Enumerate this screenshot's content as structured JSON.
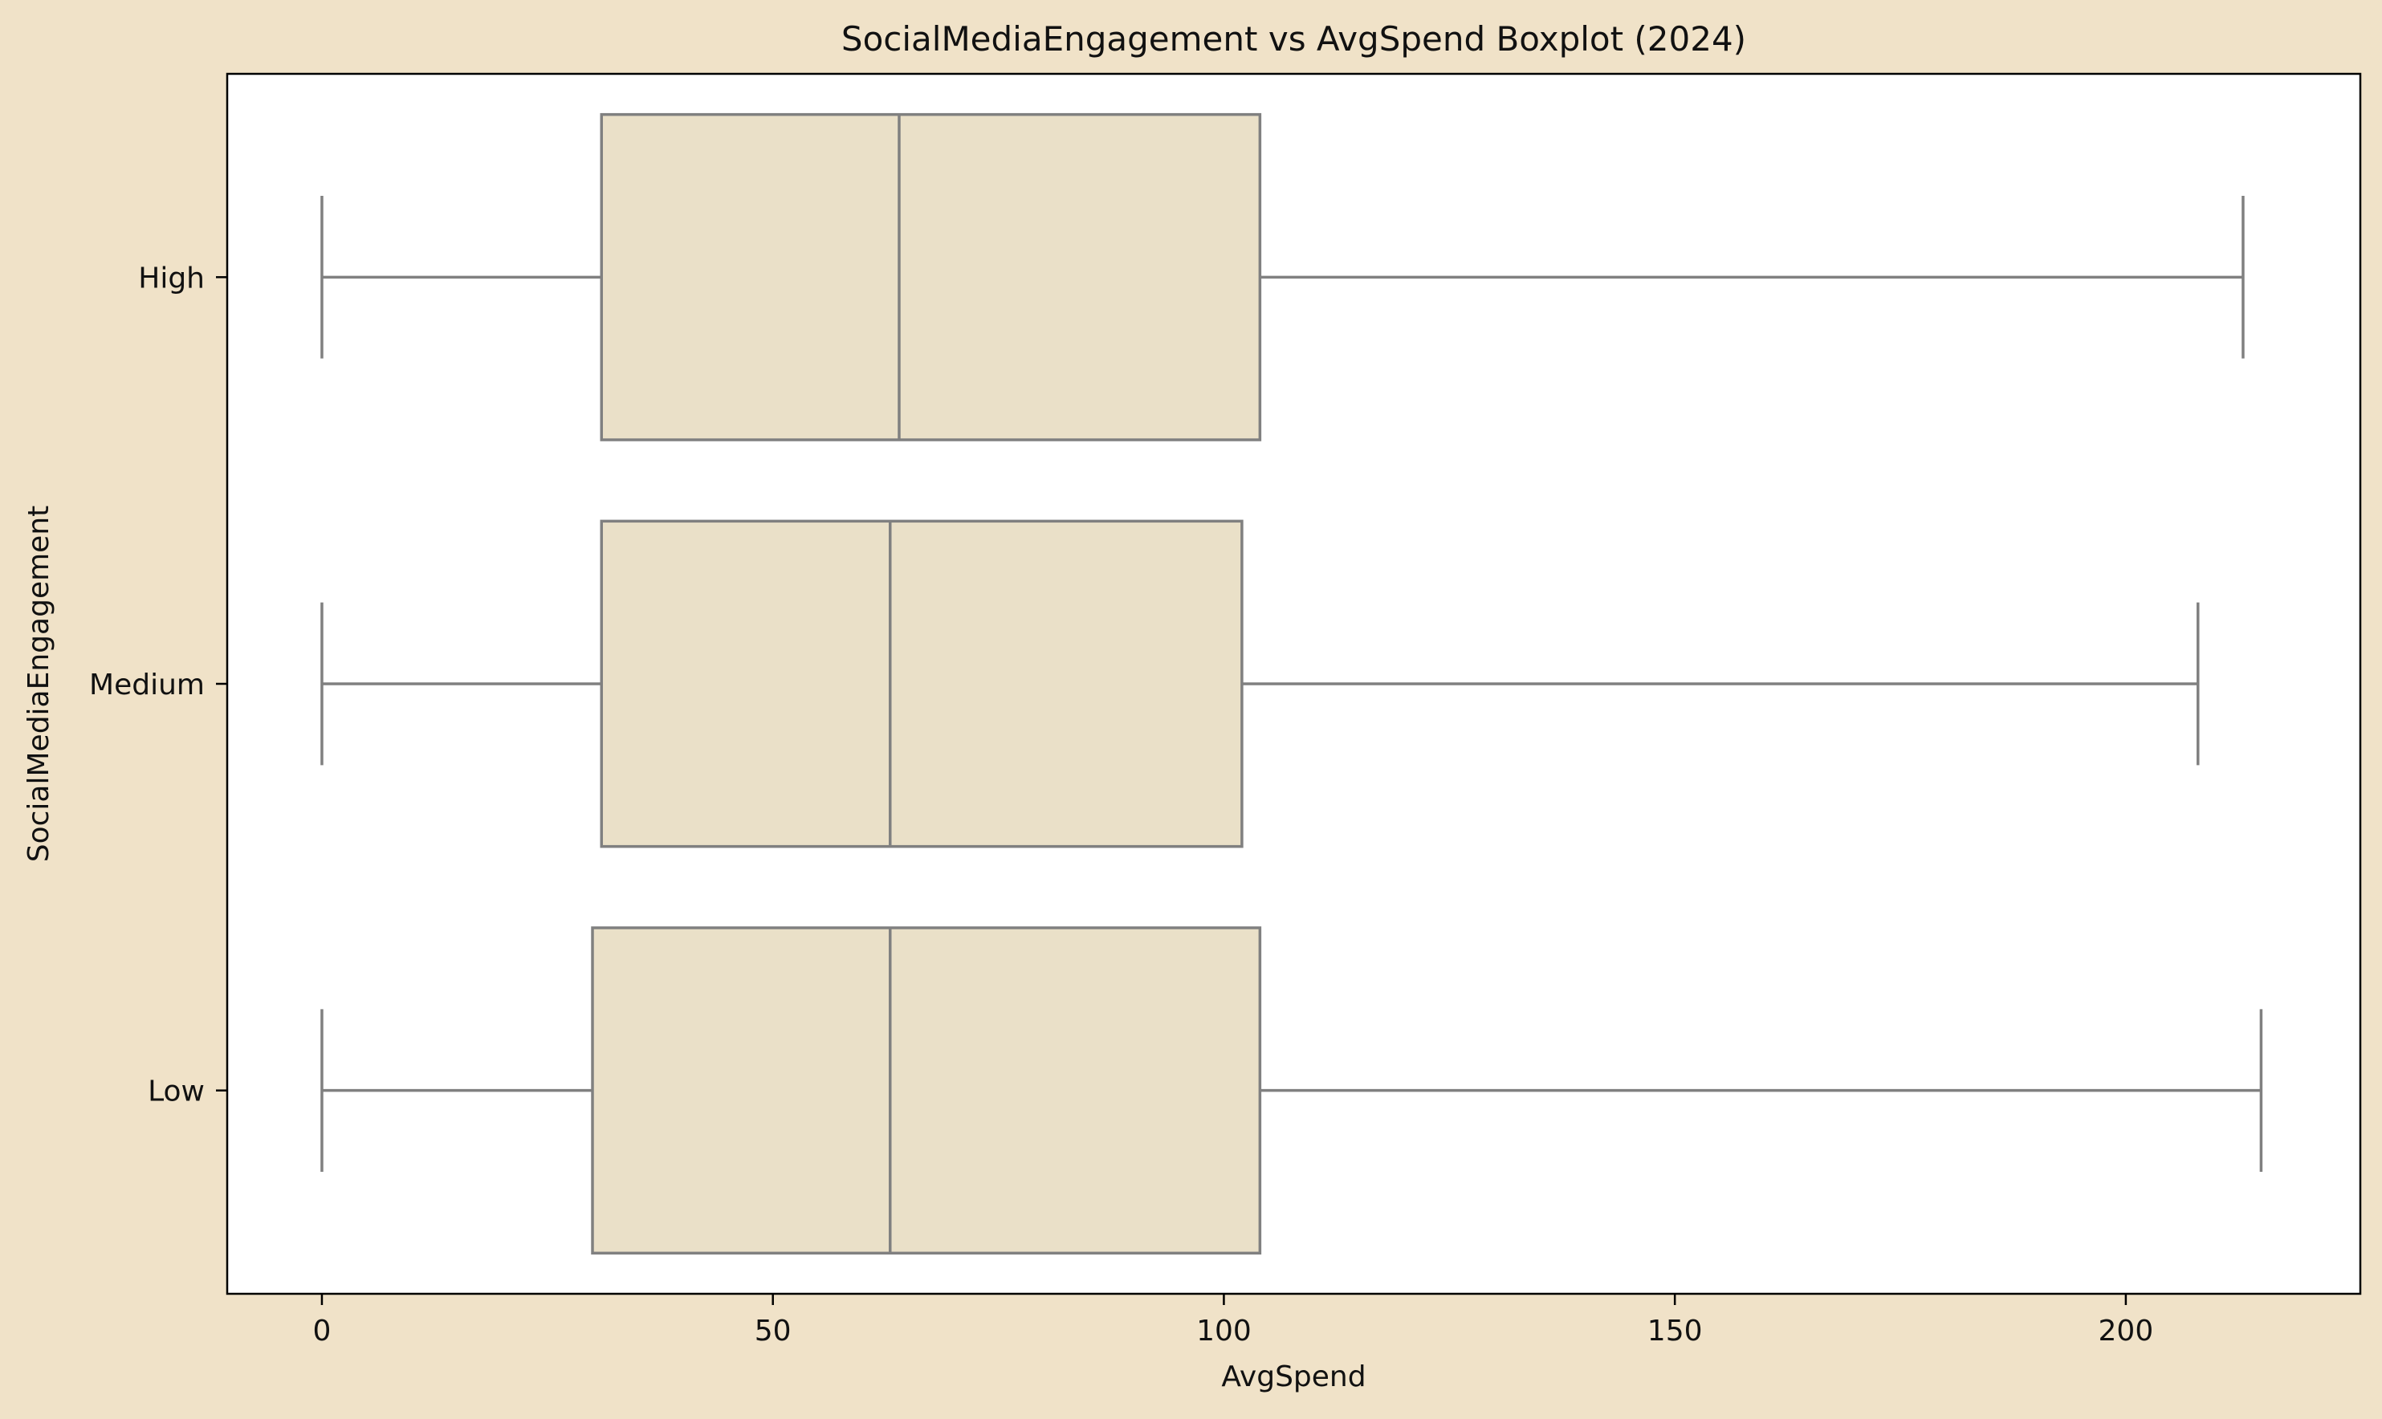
{
  "chart_data": {
    "type": "boxplot",
    "orientation": "horizontal",
    "title": "SocialMediaEngagement vs AvgSpend Boxplot (2024)",
    "xlabel": "AvgSpend",
    "ylabel": "SocialMediaEngagement",
    "xlim": [
      -10.5,
      226
    ],
    "xticks": [
      0,
      50,
      100,
      150,
      200
    ],
    "xtick_labels": [
      "0",
      "50",
      "100",
      "150",
      "200"
    ],
    "grid": false,
    "categories": [
      "High",
      "Medium",
      "Low"
    ],
    "boxes": [
      {
        "category": "High",
        "whisker_low": 0,
        "q1": 31,
        "median": 64,
        "q3": 104,
        "whisker_high": 213
      },
      {
        "category": "Medium",
        "whisker_low": 0,
        "q1": 31,
        "median": 63,
        "q3": 102,
        "whisker_high": 208
      },
      {
        "category": "Low",
        "whisker_low": 0,
        "q1": 30,
        "median": 63,
        "q3": 104,
        "whisker_high": 215
      }
    ],
    "colors": {
      "background": "#f0e2c8",
      "plot_background": "#ffffff",
      "box_fill": "#eae0c8",
      "box_edge": "#808080",
      "axis": "#000000"
    }
  }
}
